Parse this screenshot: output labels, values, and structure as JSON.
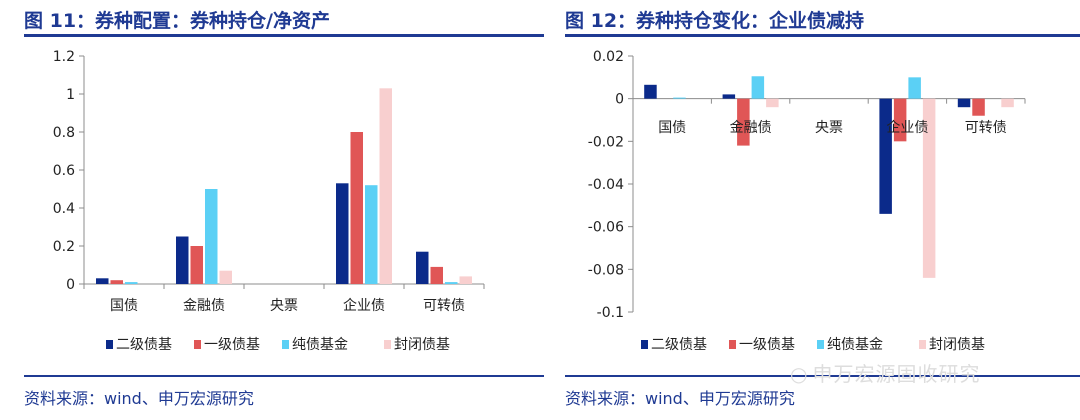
{
  "panels": [
    {
      "title": "图 11：券种配置：券种持仓/净资产",
      "source": "资料来源：wind、申万宏源研究"
    },
    {
      "title": "图 12：券种持仓变化：企业债减持",
      "source": "资料来源：wind、申万宏源研究"
    }
  ],
  "watermark": {
    "text": "申万宏源固收研究",
    "icon": "wechat-icon"
  },
  "chart_data": [
    {
      "type": "bar",
      "categories": [
        "国债",
        "金融债",
        "央票",
        "企业债",
        "可转债"
      ],
      "ylim": [
        0,
        1.2
      ],
      "yticks": [
        0,
        0.2,
        0.4,
        0.6,
        0.8,
        1,
        1.2
      ],
      "ytick_labels": [
        "0",
        "0.2",
        "0.4",
        "0.6",
        "0.8",
        "1",
        "1.2"
      ],
      "legend_position": "bottom",
      "grid": false,
      "series": [
        {
          "name": "二级债基",
          "color": "#0b2a8a",
          "values": [
            0.03,
            0.25,
            0,
            0.53,
            0.17
          ]
        },
        {
          "name": "一级债基",
          "color": "#e05656",
          "values": [
            0.02,
            0.2,
            0,
            0.8,
            0.09
          ]
        },
        {
          "name": "纯债基金",
          "color": "#5bd0f5",
          "values": [
            0.01,
            0.5,
            0,
            0.52,
            0.01
          ]
        },
        {
          "name": "封闭债基",
          "color": "#f8cfcf",
          "values": [
            0,
            0.07,
            0,
            1.03,
            0.04
          ]
        }
      ]
    },
    {
      "type": "bar",
      "categories": [
        "国债",
        "金融债",
        "央票",
        "企业债",
        "可转债"
      ],
      "ylim": [
        -0.1,
        0.02
      ],
      "yticks": [
        0.02,
        0,
        -0.02,
        -0.04,
        -0.06,
        -0.08,
        -0.1
      ],
      "ytick_labels": [
        "0.02",
        "0",
        "-0.02",
        "-0.04",
        "-0.06",
        "-0.08",
        "-0.1"
      ],
      "legend_position": "bottom",
      "grid": false,
      "series": [
        {
          "name": "二级债基",
          "color": "#0b2a8a",
          "values": [
            0.0065,
            0.002,
            0,
            -0.054,
            -0.004
          ]
        },
        {
          "name": "一级债基",
          "color": "#e05656",
          "values": [
            0,
            -0.022,
            0,
            -0.02,
            -0.008
          ]
        },
        {
          "name": "纯债基金",
          "color": "#5bd0f5",
          "values": [
            0.0005,
            0.0105,
            0,
            0.01,
            0
          ]
        },
        {
          "name": "封闭债基",
          "color": "#f8cfcf",
          "values": [
            0,
            -0.004,
            0,
            -0.084,
            -0.004
          ]
        }
      ]
    }
  ]
}
